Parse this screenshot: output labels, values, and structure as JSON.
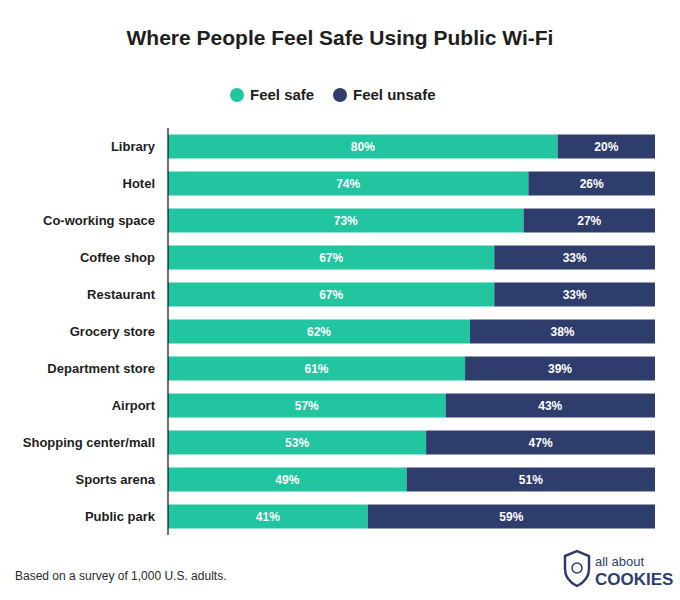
{
  "chart_data": {
    "type": "bar",
    "title": "Where People Feel Safe Using Public Wi-Fi",
    "orientation": "horizontal",
    "stacked": true,
    "data_labels": true,
    "tick_labels": "y",
    "grid": false,
    "legend": "top",
    "xlim": [
      0,
      100
    ],
    "categories": [
      "Library",
      "Hotel",
      "Co-working space",
      "Coffee shop",
      "Restaurant",
      "Grocery store",
      "Department store",
      "Airport",
      "Shopping center/mall",
      "Sports arena",
      "Public park"
    ],
    "series": [
      {
        "name": "Feel safe",
        "color": "#21c5a0",
        "values": [
          80,
          74,
          73,
          67,
          67,
          62,
          61,
          57,
          53,
          49,
          41
        ],
        "value_labels": [
          "80%",
          "74%",
          "73%",
          "67%",
          "67%",
          "62%",
          "61%",
          "57%",
          "53%",
          "49%",
          "41%"
        ]
      },
      {
        "name": "Feel unsafe",
        "color": "#2f3d6c",
        "values": [
          20,
          26,
          27,
          33,
          33,
          38,
          39,
          43,
          47,
          51,
          59
        ],
        "value_labels": [
          "20%",
          "26%",
          "27%",
          "33%",
          "33%",
          "38%",
          "39%",
          "43%",
          "47%",
          "51%",
          "59%"
        ]
      }
    ],
    "footnote": "Based on a survey of 1,000 U.S. adults.",
    "brand": [
      "all about",
      "COOKIES"
    ]
  }
}
